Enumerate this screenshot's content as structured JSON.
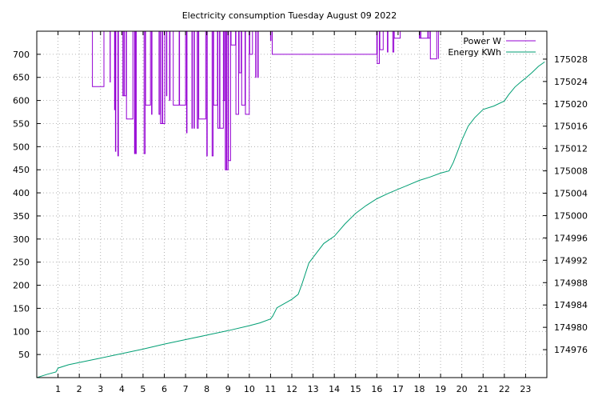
{
  "chart_data": {
    "type": "line",
    "title": "Electricity consumption Tuesday August 09 2022",
    "xlabel": "",
    "ylabel": "",
    "y2label": "",
    "xlim": [
      0,
      24
    ],
    "ylim": [
      0,
      750
    ],
    "y2lim": [
      174971,
      175033
    ],
    "x_ticks": [
      1,
      2,
      3,
      4,
      5,
      6,
      7,
      8,
      9,
      10,
      11,
      12,
      13,
      14,
      15,
      16,
      17,
      18,
      19,
      20,
      21,
      22,
      23
    ],
    "x_tick_labels": [
      "1",
      "2",
      "3",
      "4",
      "5",
      "6",
      "7",
      "8",
      "9",
      "10",
      "11",
      "12",
      "13",
      "14",
      "15",
      "16",
      "17",
      "18",
      "19",
      "20",
      "21",
      "22",
      "23"
    ],
    "y_ticks": [
      50,
      100,
      150,
      200,
      250,
      300,
      350,
      400,
      450,
      500,
      550,
      600,
      650,
      700
    ],
    "y_tick_labels": [
      "50",
      "100",
      "150",
      "200",
      "250",
      "300",
      "350",
      "400",
      "450",
      "500",
      "550",
      "600",
      "650",
      "700"
    ],
    "y2_ticks": [
      174976,
      174980,
      174984,
      174988,
      174992,
      174996,
      175000,
      175004,
      175008,
      175012,
      175016,
      175020,
      175024,
      175028
    ],
    "y2_tick_labels": [
      "174976",
      "174980",
      "174984",
      "174988",
      "174992",
      "174996",
      "175000",
      "175004",
      "175008",
      "175012",
      "175016",
      "175020",
      "175024",
      "175028"
    ],
    "grid": true,
    "legend_position": "top-right",
    "colors": {
      "power": "#9400d3",
      "energy": "#009e73",
      "grid": "#a0a0a0",
      "axis": "#000000"
    },
    "series": [
      {
        "name": "Power W",
        "axis": "y",
        "style": "steps",
        "x": [
          2.6,
          2.62,
          3.15,
          3.16,
          3.45,
          3.46,
          3.66,
          3.68,
          3.7,
          3.72,
          3.82,
          3.84,
          4.05,
          4.1,
          4.12,
          4.2,
          4.22,
          4.52,
          4.6,
          4.62,
          4.66,
          4.68,
          5.05,
          5.1,
          5.12,
          5.35,
          5.4,
          5.42,
          5.75,
          5.8,
          5.82,
          5.9,
          5.92,
          6.02,
          6.1,
          6.12,
          6.25,
          6.27,
          6.42,
          6.7,
          6.72,
          7.0,
          7.05,
          7.07,
          7.3,
          7.32,
          7.4,
          7.42,
          7.55,
          7.6,
          7.62,
          7.95,
          8.0,
          8.02,
          8.25,
          8.3,
          8.32,
          8.5,
          8.52,
          8.6,
          8.62,
          8.78,
          8.8,
          8.85,
          8.87,
          8.92,
          8.94,
          9.0,
          9.02,
          9.12,
          9.14,
          9.35,
          9.37,
          9.5,
          9.52,
          9.62,
          9.64,
          9.8,
          9.82,
          10.0,
          10.02,
          10.15,
          10.3,
          10.32,
          10.4,
          10.42,
          11.0,
          11.02,
          11.08,
          16.0,
          16.02,
          16.12,
          16.14,
          16.3,
          16.5,
          16.52,
          16.75,
          16.8,
          16.82,
          17.1,
          18.0,
          18.05,
          18.07,
          18.4,
          18.42,
          18.5,
          18.52,
          18.82,
          18.9
        ],
        "values": [
          750,
          630,
          630,
          750,
          640,
          750,
          580,
          750,
          490,
          750,
          480,
          750,
          610,
          750,
          610,
          750,
          560,
          750,
          485,
          750,
          485,
          750,
          485,
          750,
          590,
          750,
          570,
          750,
          570,
          750,
          550,
          750,
          550,
          750,
          610,
          750,
          600,
          750,
          590,
          750,
          590,
          750,
          530,
          750,
          540,
          750,
          540,
          750,
          540,
          750,
          560,
          750,
          480,
          750,
          480,
          750,
          590,
          750,
          540,
          750,
          540,
          750,
          600,
          750,
          450,
          750,
          450,
          750,
          470,
          750,
          720,
          750,
          570,
          750,
          660,
          750,
          590,
          750,
          570,
          750,
          700,
          750,
          650,
          750,
          650,
          750,
          730,
          750,
          700,
          750,
          680,
          750,
          710,
          750,
          705,
          750,
          705,
          750,
          735,
          750,
          735,
          750,
          735,
          750,
          735,
          750,
          690,
          750,
          690
        ]
      },
      {
        "name": "Energy KWh",
        "axis": "y2",
        "style": "line",
        "x": [
          0,
          0.5,
          0.9,
          1.0,
          1.5,
          2.0,
          3.0,
          4.0,
          5.0,
          6.0,
          7.0,
          8.0,
          9.0,
          10.0,
          10.5,
          11.0,
          11.1,
          11.3,
          12.0,
          12.3,
          12.5,
          12.8,
          13.0,
          13.5,
          14.0,
          14.5,
          15.0,
          15.5,
          16.0,
          16.5,
          17.0,
          17.5,
          18.0,
          18.5,
          19.0,
          19.4,
          19.6,
          19.8,
          20.0,
          20.3,
          20.6,
          21.0,
          21.5,
          22.0,
          22.2,
          22.5,
          22.8,
          23.0,
          23.3,
          23.6,
          23.9
        ],
        "values": [
          174971.0,
          174971.6,
          174972.0,
          174972.7,
          174973.3,
          174973.7,
          174974.5,
          174975.3,
          174976.1,
          174977.0,
          174977.8,
          174978.6,
          174979.4,
          174980.3,
          174980.8,
          174981.5,
          174982.0,
          174983.5,
          174985.0,
          174985.9,
          174988.0,
          174991.5,
          174992.5,
          174995.0,
          174996.3,
          174998.5,
          175000.4,
          175001.8,
          175003.0,
          175003.9,
          175004.7,
          175005.5,
          175006.3,
          175006.9,
          175007.6,
          175008.0,
          175009.5,
          175011.5,
          175013.5,
          175016.0,
          175017.5,
          175019.0,
          175019.6,
          175020.5,
          175021.6,
          175023.0,
          175024.0,
          175024.6,
          175025.6,
          175026.7,
          175027.5
        ]
      }
    ]
  }
}
